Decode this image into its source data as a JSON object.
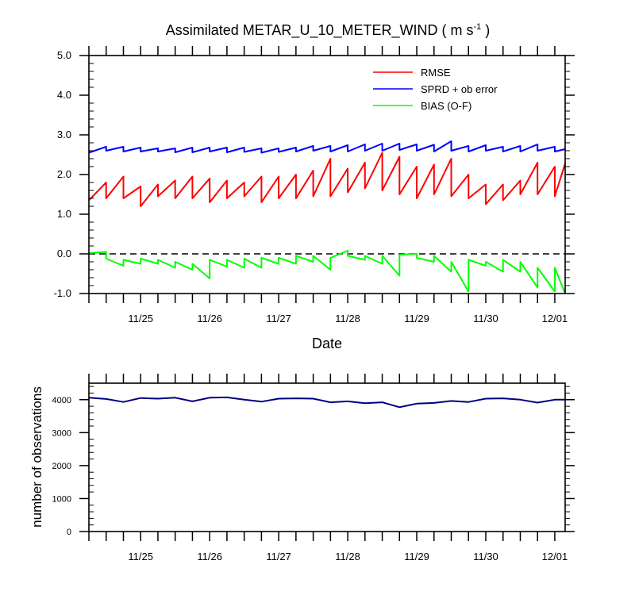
{
  "chart_data": [
    {
      "type": "line",
      "title": "Assimilated METAR_U_10_METER_WIND ( m s",
      "title_sup": "-1",
      "title_tail": " )",
      "xlabel": "Date",
      "ylabel": "",
      "x_unit": "days since 11/24 00Z",
      "xlim": [
        0.25,
        7.15
      ],
      "ylim": [
        -1.0,
        5.0
      ],
      "yticks": [
        "5.0",
        "4.0",
        "3.0",
        "2.0",
        "1.0",
        "0.0",
        "-1.0"
      ],
      "ytick_values": [
        5.0,
        4.0,
        3.0,
        2.0,
        1.0,
        0.0,
        -1.0
      ],
      "xticks": [
        "11/25",
        "11/26",
        "11/27",
        "11/28",
        "11/29",
        "11/30",
        "12/01"
      ],
      "xtick_values": [
        1,
        2,
        3,
        4,
        5,
        6,
        7
      ],
      "legend": {
        "position": "top-right"
      },
      "zero_line": true,
      "series": [
        {
          "name": "RMSE",
          "color": "#ff0000",
          "x": [
            0.25,
            0.5,
            0.5,
            0.75,
            0.75,
            1,
            1,
            1.25,
            1.25,
            1.5,
            1.5,
            1.75,
            1.75,
            2,
            2,
            2.25,
            2.25,
            2.5,
            2.5,
            2.75,
            2.75,
            3,
            3,
            3.25,
            3.25,
            3.5,
            3.5,
            3.75,
            3.75,
            4,
            4,
            4.25,
            4.25,
            4.5,
            4.5,
            4.75,
            4.75,
            5,
            5,
            5.25,
            5.25,
            5.5,
            5.5,
            5.75,
            5.75,
            6,
            6,
            6.25,
            6.25,
            6.5,
            6.5,
            6.75,
            6.75,
            7,
            7,
            7.15
          ],
          "values": [
            1.35,
            1.8,
            1.4,
            1.95,
            1.4,
            1.7,
            1.2,
            1.75,
            1.45,
            1.85,
            1.4,
            1.95,
            1.4,
            1.9,
            1.3,
            1.85,
            1.4,
            1.8,
            1.45,
            1.95,
            1.3,
            1.95,
            1.4,
            2.0,
            1.4,
            2.1,
            1.45,
            2.4,
            1.45,
            2.15,
            1.55,
            2.3,
            1.65,
            2.55,
            1.6,
            2.45,
            1.5,
            2.2,
            1.4,
            2.25,
            1.5,
            2.4,
            1.45,
            2.0,
            1.4,
            1.75,
            1.25,
            1.75,
            1.35,
            1.85,
            1.5,
            2.3,
            1.5,
            2.2,
            1.45,
            2.28
          ]
        },
        {
          "name": "SPRD + ob error",
          "color": "#0000ff",
          "x": [
            0.25,
            0.5,
            0.5,
            0.75,
            0.75,
            1,
            1,
            1.25,
            1.25,
            1.5,
            1.5,
            1.75,
            1.75,
            2,
            2,
            2.25,
            2.25,
            2.5,
            2.5,
            2.75,
            2.75,
            3,
            3,
            3.25,
            3.25,
            3.5,
            3.5,
            3.75,
            3.75,
            4,
            4,
            4.25,
            4.25,
            4.5,
            4.5,
            4.75,
            4.75,
            5,
            5,
            5.25,
            5.25,
            5.5,
            5.5,
            5.75,
            5.75,
            6,
            6,
            6.25,
            6.25,
            6.5,
            6.5,
            6.75,
            6.75,
            7,
            7,
            7.15
          ],
          "values": [
            2.55,
            2.7,
            2.6,
            2.7,
            2.58,
            2.68,
            2.58,
            2.66,
            2.58,
            2.66,
            2.56,
            2.68,
            2.56,
            2.68,
            2.58,
            2.68,
            2.56,
            2.68,
            2.57,
            2.66,
            2.55,
            2.66,
            2.57,
            2.68,
            2.58,
            2.72,
            2.6,
            2.72,
            2.58,
            2.74,
            2.58,
            2.76,
            2.6,
            2.78,
            2.6,
            2.78,
            2.62,
            2.76,
            2.6,
            2.75,
            2.58,
            2.84,
            2.6,
            2.72,
            2.58,
            2.74,
            2.6,
            2.7,
            2.58,
            2.72,
            2.58,
            2.76,
            2.6,
            2.7,
            2.58,
            2.64
          ]
        },
        {
          "name": "BIAS (O-F)",
          "color": "#00ff00",
          "x": [
            0.25,
            0.5,
            0.5,
            0.75,
            0.75,
            1,
            1,
            1.25,
            1.25,
            1.5,
            1.5,
            1.75,
            1.75,
            2,
            2,
            2.25,
            2.25,
            2.5,
            2.5,
            2.75,
            2.75,
            3,
            3,
            3.25,
            3.25,
            3.5,
            3.5,
            3.75,
            3.75,
            4,
            4,
            4.25,
            4.25,
            4.5,
            4.5,
            4.75,
            4.75,
            5,
            5,
            5.25,
            5.25,
            5.5,
            5.5,
            5.75,
            5.75,
            6,
            6,
            6.25,
            6.25,
            6.5,
            6.5,
            6.75,
            6.75,
            7,
            7,
            7.15
          ],
          "values": [
            0.02,
            0.05,
            -0.12,
            -0.3,
            -0.15,
            -0.25,
            -0.12,
            -0.25,
            -0.15,
            -0.35,
            -0.2,
            -0.4,
            -0.25,
            -0.62,
            -0.15,
            -0.32,
            -0.15,
            -0.35,
            -0.12,
            -0.35,
            -0.1,
            -0.25,
            -0.1,
            -0.25,
            -0.05,
            -0.2,
            -0.05,
            -0.4,
            -0.1,
            0.08,
            -0.05,
            -0.15,
            -0.05,
            -0.25,
            -0.05,
            -0.55,
            -0.02,
            0.0,
            -0.1,
            -0.2,
            -0.05,
            -0.45,
            -0.2,
            -0.95,
            -0.15,
            -0.3,
            -0.2,
            -0.45,
            -0.15,
            -0.45,
            -0.2,
            -0.85,
            -0.35,
            -0.95,
            -0.35,
            -1.0
          ]
        }
      ]
    },
    {
      "type": "line",
      "title": "",
      "xlabel": "",
      "ylabel": "number of observations",
      "x_unit": "days since 11/24 00Z",
      "xlim": [
        0.25,
        7.15
      ],
      "ylim": [
        0,
        4500
      ],
      "yticks": [
        "4000",
        "3000",
        "2000",
        "1000",
        "0"
      ],
      "ytick_values": [
        4000,
        3000,
        2000,
        1000,
        0
      ],
      "xticks": [
        "11/25",
        "11/26",
        "11/27",
        "11/28",
        "11/29",
        "11/30",
        "12/01"
      ],
      "xtick_values": [
        1,
        2,
        3,
        4,
        5,
        6,
        7
      ],
      "series": [
        {
          "name": "observations",
          "color": "#000080",
          "x": [
            0.25,
            0.5,
            0.75,
            1,
            1.25,
            1.5,
            1.75,
            2,
            2.25,
            2.5,
            2.75,
            3,
            3.25,
            3.5,
            3.75,
            4,
            4.25,
            4.5,
            4.75,
            5,
            5.25,
            5.5,
            5.75,
            6,
            6.25,
            6.5,
            6.75,
            7,
            7.15
          ],
          "values": [
            4060,
            4020,
            3930,
            4050,
            4030,
            4060,
            3950,
            4060,
            4070,
            4000,
            3940,
            4030,
            4040,
            4030,
            3920,
            3950,
            3890,
            3920,
            3770,
            3880,
            3900,
            3960,
            3930,
            4030,
            4040,
            4000,
            3910,
            4000,
            4000
          ]
        }
      ]
    }
  ]
}
